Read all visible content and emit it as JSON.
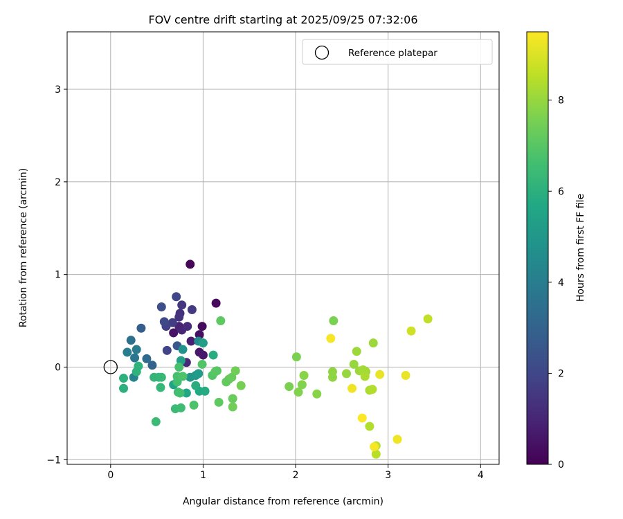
{
  "chart_data": {
    "type": "scatter",
    "title": "FOV centre drift starting at 2025/09/25 07:32:06",
    "xlabel": "Angular distance from reference (arcmin)",
    "ylabel": "Rotation from reference (arcmin)",
    "xlim": [
      -0.47,
      4.2
    ],
    "ylim": [
      -1.05,
      3.62
    ],
    "xticks": [
      0,
      1,
      2,
      3,
      4
    ],
    "yticks": [
      -1,
      0,
      1,
      2,
      3
    ],
    "xtick_labels": [
      "0",
      "1",
      "2",
      "3",
      "4"
    ],
    "ytick_labels": [
      "−1",
      "0",
      "1",
      "2",
      "3"
    ],
    "grid": true,
    "legend": {
      "position": "upper-right",
      "label": "Reference platepar"
    },
    "reference_point": {
      "x": 0,
      "y": 0
    },
    "colorbar": {
      "label": "Hours from first FF file",
      "range": [
        0,
        9.5
      ],
      "ticks": [
        0,
        2,
        4,
        6,
        8
      ],
      "tick_labels": [
        "0",
        "2",
        "4",
        "6",
        "8"
      ],
      "colormap": "viridis"
    },
    "points": [
      {
        "x": 0.86,
        "y": 1.11,
        "t": 0.1
      },
      {
        "x": 1.14,
        "y": 0.69,
        "t": 0.2
      },
      {
        "x": 0.99,
        "y": 0.44,
        "t": 0.3
      },
      {
        "x": 0.96,
        "y": 0.35,
        "t": 0.4
      },
      {
        "x": 0.68,
        "y": 0.37,
        "t": 0.5
      },
      {
        "x": 0.96,
        "y": 0.16,
        "t": 0.6
      },
      {
        "x": 1.0,
        "y": 0.13,
        "t": 0.7
      },
      {
        "x": 0.87,
        "y": 0.28,
        "t": 0.8
      },
      {
        "x": 0.74,
        "y": 0.44,
        "t": 0.9
      },
      {
        "x": 0.77,
        "y": 0.4,
        "t": 1.0
      },
      {
        "x": 0.82,
        "y": 0.05,
        "t": 1.1
      },
      {
        "x": 0.83,
        "y": 0.44,
        "t": 1.2
      },
      {
        "x": 0.75,
        "y": 0.58,
        "t": 1.3
      },
      {
        "x": 0.74,
        "y": 0.54,
        "t": 1.4
      },
      {
        "x": 0.77,
        "y": 0.67,
        "t": 1.5
      },
      {
        "x": 0.88,
        "y": 0.62,
        "t": 1.6
      },
      {
        "x": 0.67,
        "y": 0.48,
        "t": 1.7
      },
      {
        "x": 0.6,
        "y": 0.44,
        "t": 1.8
      },
      {
        "x": 0.61,
        "y": 0.18,
        "t": 1.9
      },
      {
        "x": 0.71,
        "y": 0.76,
        "t": 2.0
      },
      {
        "x": 0.58,
        "y": 0.49,
        "t": 2.1
      },
      {
        "x": 0.55,
        "y": 0.65,
        "t": 2.3
      },
      {
        "x": 0.72,
        "y": 0.23,
        "t": 2.6
      },
      {
        "x": 0.33,
        "y": 0.42,
        "t": 2.8
      },
      {
        "x": 0.45,
        "y": 0.02,
        "t": 3.0
      },
      {
        "x": 0.39,
        "y": 0.09,
        "t": 3.3
      },
      {
        "x": 0.22,
        "y": 0.29,
        "t": 3.5
      },
      {
        "x": 0.26,
        "y": 0.1,
        "t": 3.7
      },
      {
        "x": 0.28,
        "y": 0.19,
        "t": 3.9
      },
      {
        "x": 0.18,
        "y": 0.16,
        "t": 4.0
      },
      {
        "x": 0.25,
        "y": -0.11,
        "t": 4.2
      },
      {
        "x": 0.95,
        "y": 0.28,
        "t": 4.5
      },
      {
        "x": 0.78,
        "y": 0.19,
        "t": 4.8
      },
      {
        "x": 0.86,
        "y": -0.11,
        "t": 5.0
      },
      {
        "x": 0.92,
        "y": -0.09,
        "t": 5.1
      },
      {
        "x": 0.95,
        "y": -0.07,
        "t": 5.2
      },
      {
        "x": 1.0,
        "y": 0.26,
        "t": 5.3
      },
      {
        "x": 0.76,
        "y": 0.07,
        "t": 5.4
      },
      {
        "x": 0.68,
        "y": -0.19,
        "t": 5.5
      },
      {
        "x": 0.82,
        "y": -0.28,
        "t": 5.6
      },
      {
        "x": 0.96,
        "y": -0.26,
        "t": 5.7
      },
      {
        "x": 1.02,
        "y": -0.26,
        "t": 5.8
      },
      {
        "x": 0.92,
        "y": -0.2,
        "t": 5.9
      },
      {
        "x": 1.11,
        "y": 0.13,
        "t": 5.9
      },
      {
        "x": 0.14,
        "y": -0.12,
        "t": 6.0
      },
      {
        "x": 0.14,
        "y": -0.23,
        "t": 6.0
      },
      {
        "x": 0.28,
        "y": -0.05,
        "t": 6.1
      },
      {
        "x": 0.3,
        "y": 0.01,
        "t": 6.1
      },
      {
        "x": 0.47,
        "y": -0.11,
        "t": 6.2
      },
      {
        "x": 0.52,
        "y": -0.11,
        "t": 6.2
      },
      {
        "x": 0.55,
        "y": -0.11,
        "t": 6.3
      },
      {
        "x": 0.54,
        "y": -0.22,
        "t": 6.3
      },
      {
        "x": 0.49,
        "y": -0.59,
        "t": 6.4
      },
      {
        "x": 0.7,
        "y": -0.45,
        "t": 6.4
      },
      {
        "x": 0.76,
        "y": -0.44,
        "t": 6.5
      },
      {
        "x": 0.73,
        "y": -0.27,
        "t": 6.5
      },
      {
        "x": 0.75,
        "y": -0.28,
        "t": 6.6
      },
      {
        "x": 0.72,
        "y": -0.16,
        "t": 6.6
      },
      {
        "x": 0.72,
        "y": -0.1,
        "t": 6.7
      },
      {
        "x": 0.74,
        "y": 0.0,
        "t": 6.7
      },
      {
        "x": 0.78,
        "y": -0.1,
        "t": 6.8
      },
      {
        "x": 0.9,
        "y": -0.41,
        "t": 6.8
      },
      {
        "x": 0.99,
        "y": 0.03,
        "t": 6.9
      },
      {
        "x": 1.1,
        "y": -0.09,
        "t": 6.9
      },
      {
        "x": 1.13,
        "y": -0.05,
        "t": 7.0
      },
      {
        "x": 1.15,
        "y": -0.04,
        "t": 7.0
      },
      {
        "x": 1.17,
        "y": -0.38,
        "t": 7.1
      },
      {
        "x": 1.19,
        "y": 0.5,
        "t": 7.1
      },
      {
        "x": 1.25,
        "y": -0.16,
        "t": 7.2
      },
      {
        "x": 1.28,
        "y": -0.13,
        "t": 7.2
      },
      {
        "x": 1.31,
        "y": -0.11,
        "t": 7.3
      },
      {
        "x": 1.32,
        "y": -0.34,
        "t": 7.3
      },
      {
        "x": 1.32,
        "y": -0.43,
        "t": 7.4
      },
      {
        "x": 1.35,
        "y": -0.04,
        "t": 7.4
      },
      {
        "x": 1.41,
        "y": -0.2,
        "t": 7.5
      },
      {
        "x": 1.93,
        "y": -0.21,
        "t": 7.6
      },
      {
        "x": 2.01,
        "y": 0.11,
        "t": 7.6
      },
      {
        "x": 2.03,
        "y": -0.27,
        "t": 7.7
      },
      {
        "x": 2.07,
        "y": -0.19,
        "t": 7.7
      },
      {
        "x": 2.09,
        "y": -0.09,
        "t": 7.8
      },
      {
        "x": 2.23,
        "y": -0.29,
        "t": 7.8
      },
      {
        "x": 2.4,
        "y": -0.05,
        "t": 7.9
      },
      {
        "x": 2.4,
        "y": -0.11,
        "t": 7.9
      },
      {
        "x": 2.41,
        "y": 0.5,
        "t": 7.6
      },
      {
        "x": 2.55,
        "y": -0.07,
        "t": 8.0
      },
      {
        "x": 2.63,
        "y": 0.03,
        "t": 8.0
      },
      {
        "x": 2.66,
        "y": 0.17,
        "t": 8.1
      },
      {
        "x": 2.69,
        "y": -0.04,
        "t": 8.1
      },
      {
        "x": 2.73,
        "y": -0.03,
        "t": 8.2
      },
      {
        "x": 2.76,
        "y": -0.05,
        "t": 8.2
      },
      {
        "x": 2.75,
        "y": -0.1,
        "t": 8.3
      },
      {
        "x": 2.8,
        "y": -0.25,
        "t": 8.3
      },
      {
        "x": 2.83,
        "y": -0.24,
        "t": 8.4
      },
      {
        "x": 2.84,
        "y": 0.26,
        "t": 8.1
      },
      {
        "x": 2.8,
        "y": -0.64,
        "t": 8.4
      },
      {
        "x": 2.87,
        "y": -0.85,
        "t": 8.5
      },
      {
        "x": 2.87,
        "y": -0.94,
        "t": 8.5
      },
      {
        "x": 3.25,
        "y": 0.39,
        "t": 8.8
      },
      {
        "x": 3.43,
        "y": 0.52,
        "t": 8.6
      },
      {
        "x": 2.91,
        "y": -0.08,
        "t": 9.2
      },
      {
        "x": 3.19,
        "y": -0.09,
        "t": 9.2
      },
      {
        "x": 2.61,
        "y": -0.23,
        "t": 9.3
      },
      {
        "x": 3.1,
        "y": -0.78,
        "t": 9.3
      },
      {
        "x": 2.85,
        "y": -0.86,
        "t": 9.4
      },
      {
        "x": 2.38,
        "y": 0.31,
        "t": 9.4
      },
      {
        "x": 2.72,
        "y": -0.55,
        "t": 9.5
      }
    ]
  }
}
